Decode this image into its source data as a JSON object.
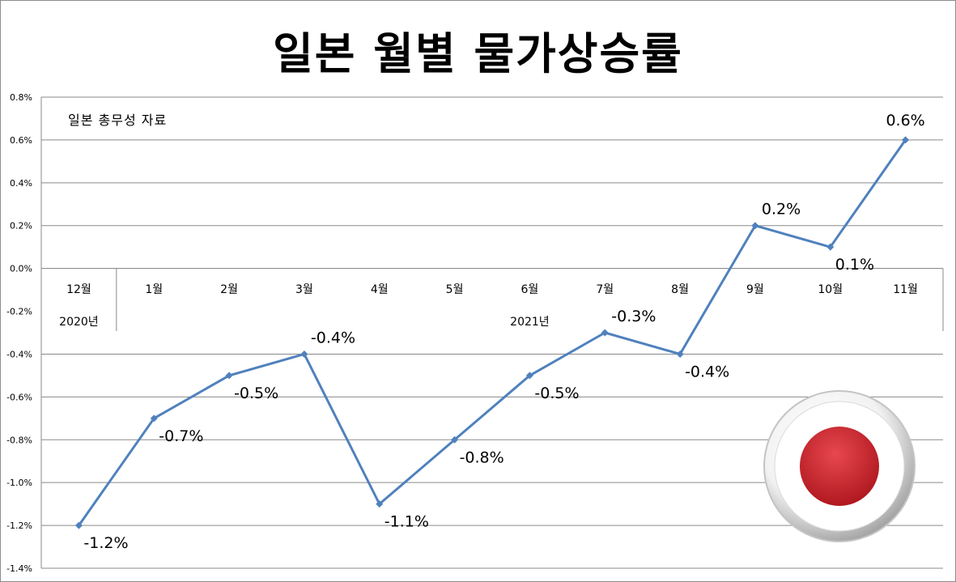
{
  "chart_data": {
    "type": "line",
    "title": "일본 월별 물가상승률",
    "annotation": "일본 총무성 자료",
    "categories": [
      "12월",
      "1월",
      "2월",
      "3월",
      "4월",
      "5월",
      "6월",
      "7월",
      "8월",
      "9월",
      "10월",
      "11월"
    ],
    "category_groups": [
      {
        "label": "2020년",
        "span": 1
      },
      {
        "label": "2021년",
        "span": 11
      }
    ],
    "series": [
      {
        "values": [
          -1.2,
          -0.7,
          -0.5,
          -0.4,
          -1.1,
          -0.8,
          -0.5,
          -0.3,
          -0.4,
          0.2,
          0.1,
          0.6
        ],
        "color": "#4f81bd"
      }
    ],
    "data_labels": [
      "-1.2%",
      "-0.7%",
      "-0.5%",
      "-0.4%",
      "-1.1%",
      "-0.8%",
      "-0.5%",
      "-0.3%",
      "-0.4%",
      "0.2%",
      "0.1%",
      "0.6%"
    ],
    "y_ticks": [
      "0.8%",
      "0.6%",
      "0.4%",
      "0.2%",
      "0.0%",
      "-0.2%",
      "-0.4%",
      "-0.6%",
      "-0.8%",
      "-1.0%",
      "-1.2%",
      "-1.4%"
    ],
    "y_tick_values": [
      0.8,
      0.6,
      0.4,
      0.2,
      0.0,
      -0.2,
      -0.4,
      -0.6,
      -0.8,
      -1.0,
      -1.2,
      -1.4
    ],
    "ylim": [
      -1.4,
      0.8
    ],
    "grid": true,
    "legend": "none",
    "xlabel": "",
    "ylabel": ""
  },
  "decoration": {
    "flag_icon": "japan-flag-icon",
    "flag_colors": {
      "disc": "#c8202a",
      "ring": "#e6e6e6"
    }
  }
}
